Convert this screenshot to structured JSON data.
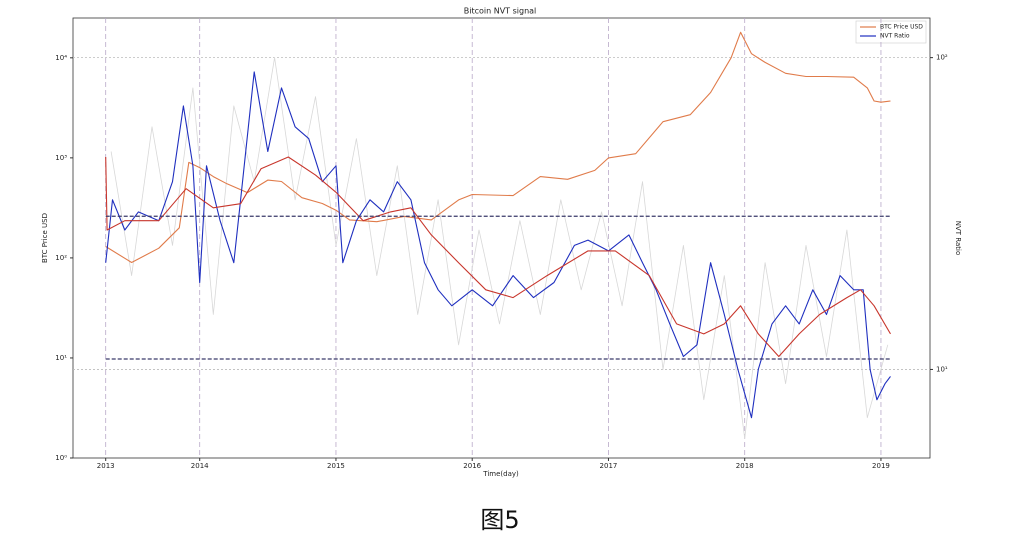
{
  "chart_data": {
    "type": "line",
    "title": "Bitcoin NVT signal",
    "x_label": "Time(day)",
    "y_label": "BTC Price USD",
    "y2_label": "NVT Ratio",
    "xlim": [
      2013.07,
      2019.36
    ],
    "xticks": [
      {
        "value": 2013.31,
        "label": "2013"
      },
      {
        "value": 2014,
        "label": "2014"
      },
      {
        "value": 2015,
        "label": "2015"
      },
      {
        "value": 2016,
        "label": "2016"
      },
      {
        "value": 2017,
        "label": "2017"
      },
      {
        "value": 2018,
        "label": "2018"
      },
      {
        "value": 2019,
        "label": "2019"
      }
    ],
    "ylim": [
      1,
      25000
    ],
    "log_y": true,
    "yticks": [
      {
        "value": 1,
        "label": "10⁰"
      },
      {
        "value": 10,
        "label": "10¹"
      },
      {
        "value": 100,
        "label": "10²"
      },
      {
        "value": 1000,
        "label": "10³"
      },
      {
        "value": 10000,
        "label": "10⁴"
      }
    ],
    "y2lim": [
      5.2,
      134
    ],
    "log_y2": true,
    "y2ticks": [
      {
        "value": 10,
        "label": "10¹"
      },
      {
        "value": 100,
        "label": "10²"
      }
    ],
    "grid": true,
    "legend": "upper right",
    "hlines": {
      "axis": "y2",
      "color": "#3a3a6a",
      "values": [
        31,
        10.8
      ]
    },
    "series": [
      {
        "name": "BTC Price USD",
        "color": "#e07b4a",
        "axis": "y",
        "x": [
          2013.31,
          2013.5,
          2013.7,
          2013.85,
          2013.92,
          2014.0,
          2014.1,
          2014.2,
          2014.35,
          2014.5,
          2014.6,
          2014.75,
          2014.9,
          2015.0,
          2015.1,
          2015.3,
          2015.5,
          2015.7,
          2015.9,
          2016.0,
          2016.3,
          2016.5,
          2016.7,
          2016.9,
          2017.0,
          2017.2,
          2017.4,
          2017.6,
          2017.75,
          2017.9,
          2017.97,
          2018.05,
          2018.15,
          2018.3,
          2018.45,
          2018.6,
          2018.8,
          2018.9,
          2018.95,
          2019.0,
          2019.07
        ],
        "values": [
          130,
          90,
          125,
          200,
          900,
          800,
          650,
          550,
          450,
          600,
          580,
          400,
          350,
          300,
          240,
          230,
          260,
          240,
          380,
          430,
          420,
          650,
          610,
          750,
          1000,
          1100,
          2300,
          2700,
          4500,
          10000,
          18000,
          11000,
          9000,
          7000,
          6500,
          6500,
          6400,
          5000,
          3700,
          3600,
          3700
        ]
      },
      {
        "name": "NVT Ratio",
        "color": "#1f2fbf",
        "axis": "y2",
        "x": [
          2013.31,
          2013.36,
          2013.45,
          2013.55,
          2013.7,
          2013.8,
          2013.88,
          2013.95,
          2014.0,
          2014.05,
          2014.15,
          2014.25,
          2014.3,
          2014.4,
          2014.5,
          2014.6,
          2014.7,
          2014.8,
          2014.9,
          2015.0,
          2015.05,
          2015.15,
          2015.25,
          2015.35,
          2015.45,
          2015.55,
          2015.65,
          2015.75,
          2015.85,
          2016.0,
          2016.15,
          2016.3,
          2016.45,
          2016.6,
          2016.75,
          2016.85,
          2017.0,
          2017.15,
          2017.25,
          2017.35,
          2017.45,
          2017.55,
          2017.65,
          2017.75,
          2017.85,
          2017.95,
          2018.05,
          2018.1,
          2018.2,
          2018.3,
          2018.4,
          2018.5,
          2018.6,
          2018.7,
          2018.8,
          2018.87,
          2018.92,
          2018.97,
          2019.03,
          2019.07
        ],
        "values": [
          22,
          35,
          28,
          32,
          30,
          40,
          70,
          45,
          19,
          45,
          30,
          22,
          35,
          90,
          50,
          80,
          60,
          55,
          40,
          45,
          22,
          30,
          35,
          32,
          40,
          35,
          22,
          18,
          16,
          18,
          16,
          20,
          17,
          19,
          25,
          26,
          24,
          27,
          22,
          18,
          14,
          11,
          12,
          22,
          15,
          10,
          7,
          10,
          14,
          16,
          14,
          18,
          15,
          20,
          18,
          18,
          10,
          8,
          9,
          9.5
        ]
      },
      {
        "color": "#c8362c",
        "axis": "y2",
        "x": [
          2013.31,
          2013.32,
          2013.45,
          2013.7,
          2013.9,
          2014.1,
          2014.3,
          2014.45,
          2014.65,
          2014.85,
          2015.0,
          2015.2,
          2015.4,
          2015.55,
          2015.7,
          2015.9,
          2016.1,
          2016.3,
          2016.55,
          2016.85,
          2017.05,
          2017.3,
          2017.5,
          2017.7,
          2017.85,
          2017.97,
          2018.1,
          2018.25,
          2018.4,
          2018.55,
          2018.75,
          2018.85,
          2018.95,
          2019.07
        ],
        "values": [
          48,
          28,
          30,
          30,
          38,
          33,
          34,
          44,
          48,
          42,
          37,
          30,
          32,
          33,
          27,
          22,
          18,
          17,
          20,
          24,
          24,
          20,
          14,
          13,
          14,
          16,
          13,
          11,
          13,
          15,
          17,
          18,
          16,
          13
        ]
      },
      {
        "color": "#d8d8d8",
        "axis": "y2",
        "x": [
          2013.35,
          2013.5,
          2013.65,
          2013.8,
          2013.95,
          2014.1,
          2014.25,
          2014.4,
          2014.55,
          2014.7,
          2014.85,
          2015.0,
          2015.15,
          2015.3,
          2015.45,
          2015.6,
          2015.75,
          2015.9,
          2016.05,
          2016.2,
          2016.35,
          2016.5,
          2016.65,
          2016.8,
          2016.95,
          2017.1,
          2017.25,
          2017.4,
          2017.55,
          2017.7,
          2017.85,
          2018.0,
          2018.15,
          2018.3,
          2018.45,
          2018.6,
          2018.75,
          2018.9,
          2019.05
        ],
        "values": [
          50,
          20,
          60,
          25,
          80,
          15,
          70,
          40,
          100,
          35,
          75,
          25,
          55,
          20,
          45,
          15,
          35,
          12,
          28,
          14,
          30,
          15,
          35,
          18,
          32,
          16,
          40,
          10,
          25,
          8,
          20,
          6,
          22,
          9,
          25,
          11,
          28,
          7,
          12
        ]
      }
    ]
  },
  "caption": "图5"
}
